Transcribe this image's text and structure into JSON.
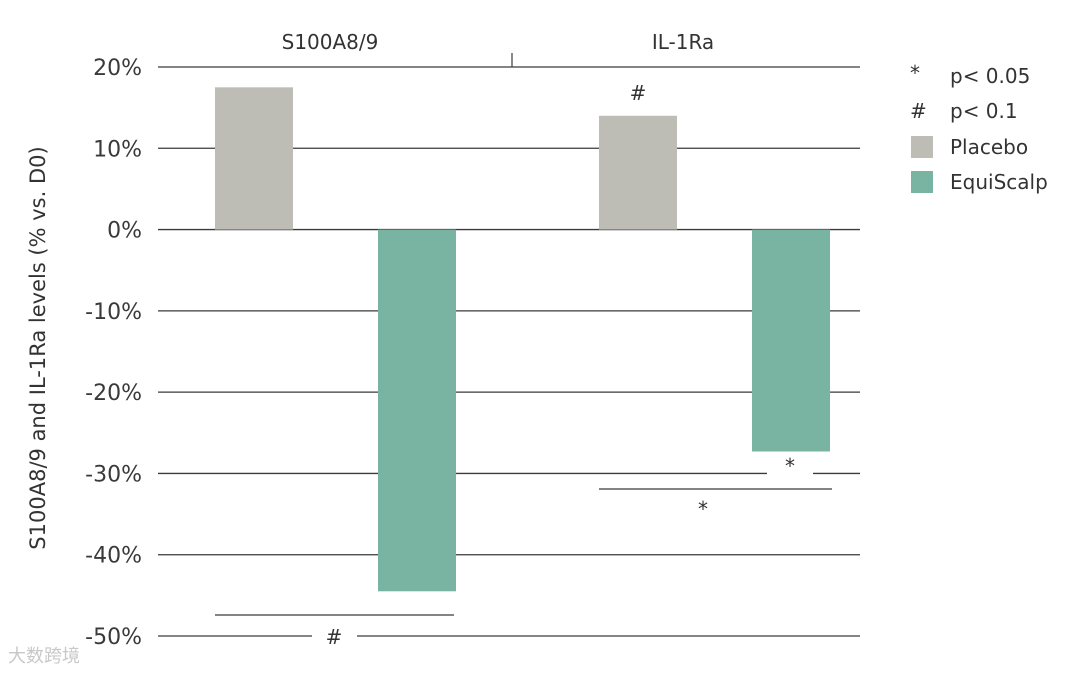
{
  "chart_data": {
    "type": "bar",
    "categories": [
      "S100A8/9",
      "IL-1Ra"
    ],
    "series": [
      {
        "name": "Placebo",
        "values": [
          17.5,
          14
        ],
        "color": "#bdbdb6"
      },
      {
        "name": "EquiScalp",
        "values": [
          -44.5,
          -27.3
        ],
        "color": "#79b4a3"
      }
    ],
    "ylabel": "S100A8/9 and IL-1Ra levels (% vs. D0)",
    "ylim": [
      -50,
      20
    ],
    "yticks": [
      20,
      10,
      0,
      -10,
      -20,
      -30,
      -40,
      -50
    ],
    "ytick_labels": [
      "20%",
      "10%",
      "0%",
      "-10%",
      "-20%",
      "-30%",
      "-40%",
      "-50%"
    ],
    "grid": true,
    "legend_position": "right",
    "legend": [
      {
        "symbol": "*",
        "label": "p< 0.05"
      },
      {
        "symbol": "#",
        "label": "p< 0.1"
      },
      {
        "swatch": "#bdbdb6",
        "label": "Placebo"
      },
      {
        "swatch": "#79b4a3",
        "label": "EquiScalp"
      }
    ],
    "annotations": [
      {
        "text": "#",
        "note": "above IL-1Ra Placebo bar"
      },
      {
        "text": "*",
        "note": "IL-1Ra EquiScalp vs D0"
      },
      {
        "text": "*",
        "note": "IL-1Ra Placebo vs EquiScalp"
      },
      {
        "text": "#",
        "note": "S100A8/9 Placebo vs EquiScalp"
      }
    ]
  },
  "watermark": "大数跨境",
  "colors": {
    "grid": "#3a3a3a",
    "text": "#333333"
  }
}
